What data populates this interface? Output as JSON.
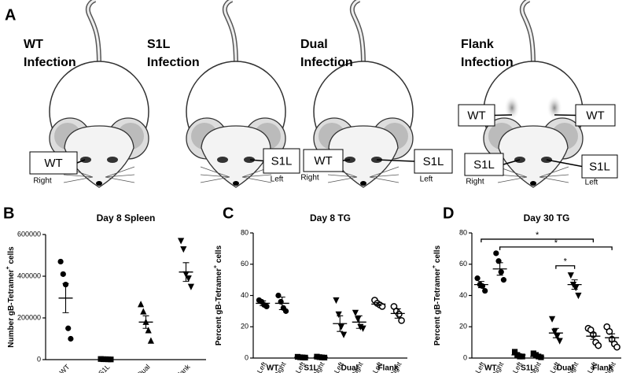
{
  "panel_a": {
    "label": "A",
    "mice": [
      {
        "title": [
          "WT",
          "Infection"
        ],
        "labels": [
          {
            "text": "WT",
            "site": "Right"
          }
        ]
      },
      {
        "title": [
          "S1L",
          "Infection"
        ],
        "labels": [
          {
            "text": "S1L",
            "site": "Left"
          }
        ]
      },
      {
        "title": [
          "Dual",
          "Infection"
        ],
        "labels": [
          {
            "text": "WT",
            "site": "Right"
          },
          {
            "text": "S1L",
            "site": "Left"
          }
        ]
      },
      {
        "title": [
          "Flank",
          "Infection"
        ],
        "labels": [
          {
            "text": "WT"
          },
          {
            "text": "WT"
          },
          {
            "text": "S1L",
            "site": "Right"
          },
          {
            "text": "S1L",
            "site": "Left"
          }
        ]
      }
    ]
  },
  "chart_data": [
    {
      "type": "dot",
      "panel": "B",
      "title": "Day 8 Spleen",
      "ylabel": [
        "Number gB-Tetramer",
        "+",
        " cells"
      ],
      "ylim": [
        0,
        600000
      ],
      "yticks": [
        0,
        200000,
        400000,
        600000
      ],
      "groups": [
        {
          "name": "WT",
          "marker": "circle",
          "values": [
            470000,
            410000,
            360000,
            150000,
            100000
          ],
          "mean": 295000,
          "sem": 70000
        },
        {
          "name": "S1L",
          "marker": "square",
          "values": [
            3000,
            2000,
            2000,
            1500,
            1000
          ],
          "mean": 2000,
          "sem": 400
        },
        {
          "name": "Dual",
          "marker": "triangle-up",
          "values": [
            265000,
            230000,
            180000,
            140000,
            90000
          ],
          "mean": 180000,
          "sem": 30000
        },
        {
          "name": "Flank",
          "marker": "triangle-down",
          "values": [
            570000,
            530000,
            410000,
            390000,
            350000
          ],
          "mean": 420000,
          "sem": 45000
        }
      ]
    },
    {
      "type": "dot",
      "panel": "C",
      "title": "Day 8 TG",
      "ylabel": [
        "Percent gB-Tetramer",
        "+",
        " cells"
      ],
      "ylim": [
        0,
        80
      ],
      "yticks": [
        0,
        20,
        40,
        60,
        80
      ],
      "groups": [
        {
          "name": "WT",
          "marker": "circle",
          "subgroups": [
            {
              "name": "Left",
              "values": [
                37,
                36,
                34,
                33
              ],
              "mean": 35,
              "sem": 1.5
            },
            {
              "name": "Right",
              "values": [
                40,
                36,
                32,
                30
              ],
              "mean": 35,
              "sem": 4
            }
          ]
        },
        {
          "name": "S1L",
          "marker": "square",
          "subgroups": [
            {
              "name": "Left",
              "values": [
                0.8,
                0.5,
                0.4,
                0.3
              ],
              "mean": 0.5,
              "sem": 0.2
            },
            {
              "name": "Right",
              "values": [
                0.9,
                0.6,
                0.4,
                0.3
              ],
              "mean": 0.5,
              "sem": 0.2
            }
          ]
        },
        {
          "name": "Dual",
          "marker": "triangle-down",
          "subgroups": [
            {
              "name": "Left",
              "values": [
                37,
                28,
                20,
                15
              ],
              "mean": 22,
              "sem": 5
            },
            {
              "name": "Right",
              "values": [
                29,
                25,
                20,
                19
              ],
              "mean": 23,
              "sem": 4
            }
          ]
        },
        {
          "name": "Flank",
          "marker": "circle-open",
          "subgroups": [
            {
              "name": "Left",
              "values": [
                37,
                35,
                34,
                33
              ],
              "mean": 34.5,
              "sem": 1
            },
            {
              "name": "Right",
              "values": [
                33,
                30,
                28,
                24
              ],
              "mean": 28.5,
              "sem": 3
            }
          ]
        }
      ]
    },
    {
      "type": "dot",
      "panel": "D",
      "title": "Day 30 TG",
      "ylabel": [
        "Percent gB-Tetramer",
        "+",
        " cells"
      ],
      "ylim": [
        0,
        80
      ],
      "yticks": [
        0,
        20,
        40,
        60,
        80
      ],
      "groups": [
        {
          "name": "WT",
          "marker": "circle",
          "subgroups": [
            {
              "name": "Left",
              "values": [
                51,
                47,
                46,
                43
              ],
              "mean": 47,
              "sem": 2
            },
            {
              "name": "Right",
              "values": [
                67,
                62,
                55,
                50
              ],
              "mean": 57,
              "sem": 4
            }
          ]
        },
        {
          "name": "S1L",
          "marker": "square",
          "subgroups": [
            {
              "name": "Left",
              "values": [
                4,
                2,
                1,
                1
              ],
              "mean": 2,
              "sem": 0.8
            },
            {
              "name": "Right",
              "values": [
                3,
                2,
                1,
                0.5
              ],
              "mean": 1,
              "sem": 0.6
            }
          ]
        },
        {
          "name": "Dual",
          "marker": "triangle-down",
          "subgroups": [
            {
              "name": "Left",
              "values": [
                25,
                17,
                14,
                11
              ],
              "mean": 16,
              "sem": 3
            },
            {
              "name": "Right",
              "values": [
                53,
                47,
                45,
                40
              ],
              "mean": 47,
              "sem": 3
            }
          ]
        },
        {
          "name": "Flank",
          "marker": "circle-open",
          "subgroups": [
            {
              "name": "Left",
              "values": [
                19,
                18,
                15,
                10,
                8
              ],
              "mean": 14,
              "sem": 2
            },
            {
              "name": "Right",
              "values": [
                20,
                17,
                12,
                9,
                7
              ],
              "mean": 13,
              "sem": 2.5
            }
          ]
        }
      ],
      "brackets": [
        {
          "text": "*",
          "from": [
            0,
            0
          ],
          "to": [
            3,
            0
          ],
          "y": 76
        },
        {
          "text": "*",
          "from": [
            0,
            1
          ],
          "to": [
            3,
            1
          ],
          "y": 71
        },
        {
          "text": "*",
          "from": [
            2,
            0
          ],
          "to": [
            2,
            1
          ],
          "y": 59
        }
      ]
    }
  ]
}
